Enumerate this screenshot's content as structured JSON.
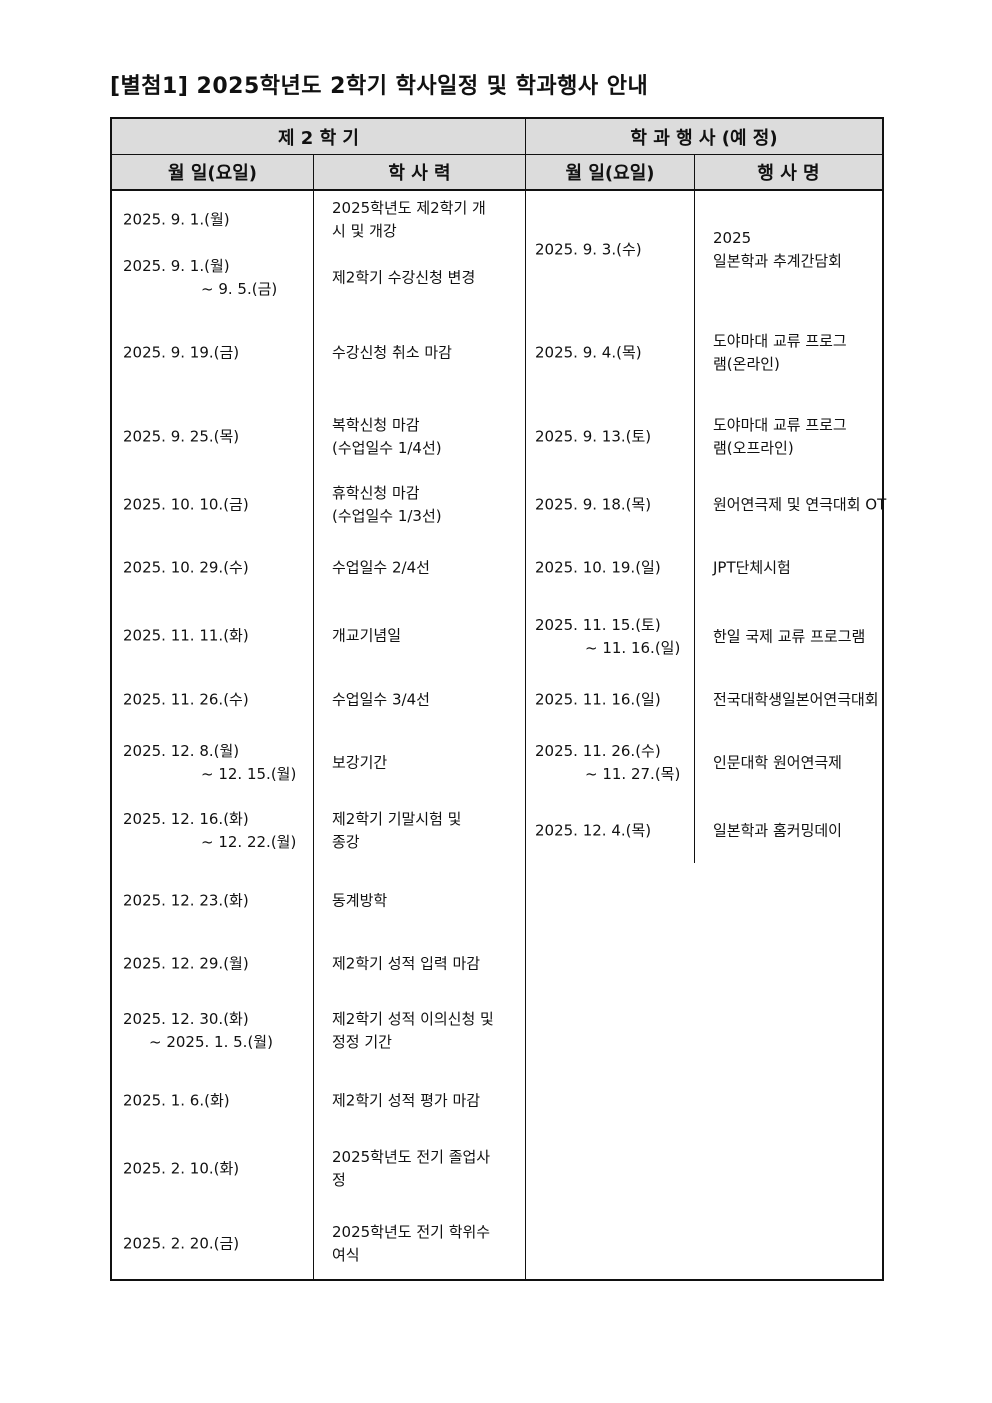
{
  "title": "[별첨1] 2025학년도 2학기 학사일정 및 학과행사 안내",
  "headers": {
    "semester": "제 2 학 기",
    "dept_events": "학 과 행 사 (예 정)",
    "date1": "월 일(요일)",
    "calendar": "학 사 력",
    "date2": "월 일(요일)",
    "event_name": "행 사 명"
  },
  "semester_rows": [
    {
      "date": [
        "2025. 9. 1.(월)"
      ],
      "event": [
        "2025학년도 제2학기 개",
        "시 및 개강"
      ]
    },
    {
      "date": [
        "2025. 9. 1.(월)",
        "~ 9. 5.(금)"
      ],
      "event": [
        "제2학기 수강신청 변경"
      ]
    },
    {
      "date": [
        "2025. 9. 19.(금)"
      ],
      "event": [
        "수강신청 취소 마감"
      ]
    },
    {
      "date": [
        "2025. 9. 25.(목)"
      ],
      "event": [
        "복학신청 마감",
        "(수업일수 1/4선)"
      ]
    },
    {
      "date": [
        "2025. 10. 10.(금)"
      ],
      "event": [
        "휴학신청 마감",
        "(수업일수 1/3선)"
      ]
    },
    {
      "date": [
        "2025. 10. 29.(수)"
      ],
      "event": [
        "수업일수 2/4선"
      ]
    },
    {
      "date": [
        "2025. 11. 11.(화)"
      ],
      "event": [
        "개교기념일"
      ]
    },
    {
      "date": [
        "2025. 11. 26.(수)"
      ],
      "event": [
        "수업일수 3/4선"
      ]
    },
    {
      "date": [
        "2025. 12. 8.(월)",
        "~ 12. 15.(월)"
      ],
      "event": [
        "보강기간"
      ]
    },
    {
      "date": [
        "2025. 12. 16.(화)",
        "~ 12. 22.(월)"
      ],
      "event": [
        "제2학기 기말시험 및",
        "종강"
      ]
    },
    {
      "date": [
        "2025. 12. 23.(화)"
      ],
      "event": [
        "동계방학"
      ]
    },
    {
      "date": [
        "2025. 12. 29.(월)"
      ],
      "event": [
        "제2학기 성적 입력 마감"
      ]
    },
    {
      "date": [
        "2025. 12. 30.(화)",
        "~ 2025. 1. 5.(월)"
      ],
      "event": [
        "제2학기 성적 이의신청 및",
        "정정 기간"
      ]
    },
    {
      "date": [
        "2025. 1. 6.(화)"
      ],
      "event": [
        "제2학기 성적 평가 마감"
      ]
    },
    {
      "date": [
        "2025. 2. 10.(화)"
      ],
      "event": [
        "2025학년도 전기 졸업사",
        "정"
      ]
    },
    {
      "date": [
        "2025. 2. 20.(금)"
      ],
      "event": [
        "2025학년도 전기 학위수",
        "여식"
      ]
    }
  ],
  "dept_rows": [
    {
      "date": [
        "2025. 9. 3.(수)"
      ],
      "event": [
        "2025",
        "일본학과 추계간담회"
      ]
    },
    {
      "date": [
        "2025. 9. 4.(목)"
      ],
      "event": [
        "도야마대 교류 프로그",
        "램(온라인)"
      ]
    },
    {
      "date": [
        "2025. 9. 13.(토)"
      ],
      "event": [
        "도야마대 교류 프로그",
        "램(오프라인)"
      ]
    },
    {
      "date": [
        "2025. 9. 18.(목)"
      ],
      "event": [
        "원어연극제 및 연극대회 OT"
      ]
    },
    {
      "date": [
        "2025. 10. 19.(일)"
      ],
      "event": [
        "JPT단체시험"
      ]
    },
    {
      "date": [
        "2025. 11. 15.(토)",
        "~ 11. 16.(일)"
      ],
      "event": [
        "한일 국제 교류 프로그램"
      ]
    },
    {
      "date": [
        "2025. 11. 16.(일)"
      ],
      "event": [
        "전국대학생일본어연극대회"
      ]
    },
    {
      "date": [
        "2025. 11. 26.(수)",
        "~ 11. 27.(목)"
      ],
      "event": [
        "인문대학 원어연극제"
      ]
    },
    {
      "date": [
        "2025. 12. 4.(목)"
      ],
      "event": [
        "일본학과 홈커밍데이"
      ]
    }
  ]
}
